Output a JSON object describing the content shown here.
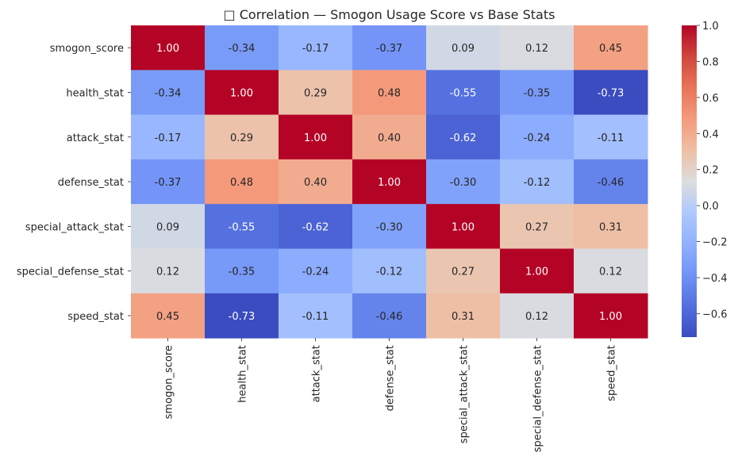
{
  "chart_data": {
    "type": "heatmap",
    "title": "□ Correlation — Smogon Usage Score vs Base Stats",
    "xlabel": "",
    "ylabel": "",
    "categories": [
      "smogon_score",
      "health_stat",
      "attack_stat",
      "defense_stat",
      "special_attack_stat",
      "special_defense_stat",
      "speed_stat"
    ],
    "values": [
      [
        1.0,
        -0.34,
        -0.17,
        -0.37,
        0.09,
        0.12,
        0.45
      ],
      [
        -0.34,
        1.0,
        0.29,
        0.48,
        -0.55,
        -0.35,
        -0.73
      ],
      [
        -0.17,
        0.29,
        1.0,
        0.4,
        -0.62,
        -0.24,
        -0.11
      ],
      [
        -0.37,
        0.48,
        0.4,
        1.0,
        -0.3,
        -0.12,
        -0.46
      ],
      [
        0.09,
        -0.55,
        -0.62,
        -0.3,
        1.0,
        0.27,
        0.31
      ],
      [
        0.12,
        -0.35,
        -0.24,
        -0.12,
        0.27,
        1.0,
        0.12
      ],
      [
        0.45,
        -0.73,
        -0.11,
        -0.46,
        0.31,
        0.12,
        1.0
      ]
    ],
    "value_labels": [
      [
        "1.00",
        "-0.34",
        "-0.17",
        "-0.37",
        "0.09",
        "0.12",
        "0.45"
      ],
      [
        "-0.34",
        "1.00",
        "0.29",
        "0.48",
        "-0.55",
        "-0.35",
        "-0.73"
      ],
      [
        "-0.17",
        "0.29",
        "1.00",
        "0.40",
        "-0.62",
        "-0.24",
        "-0.11"
      ],
      [
        "-0.37",
        "0.48",
        "0.40",
        "1.00",
        "-0.30",
        "-0.12",
        "-0.46"
      ],
      [
        "0.09",
        "-0.55",
        "-0.62",
        "-0.30",
        "1.00",
        "0.27",
        "0.31"
      ],
      [
        "0.12",
        "-0.35",
        "-0.24",
        "-0.12",
        "0.27",
        "1.00",
        "0.12"
      ],
      [
        "0.45",
        "-0.73",
        "-0.11",
        "-0.46",
        "0.31",
        "0.12",
        "1.00"
      ]
    ],
    "colormap": "coolwarm",
    "vmin": -0.73,
    "vmax": 1.0,
    "colorbar": {
      "ticks": [
        1.0,
        0.8,
        0.6,
        0.4,
        0.2,
        0.0,
        -0.2,
        -0.4,
        -0.6
      ],
      "tick_labels": [
        "1.0",
        "0.8",
        "0.6",
        "0.4",
        "0.2",
        "0.0",
        "−0.2",
        "−0.4",
        "−0.6"
      ]
    },
    "grid": false
  }
}
